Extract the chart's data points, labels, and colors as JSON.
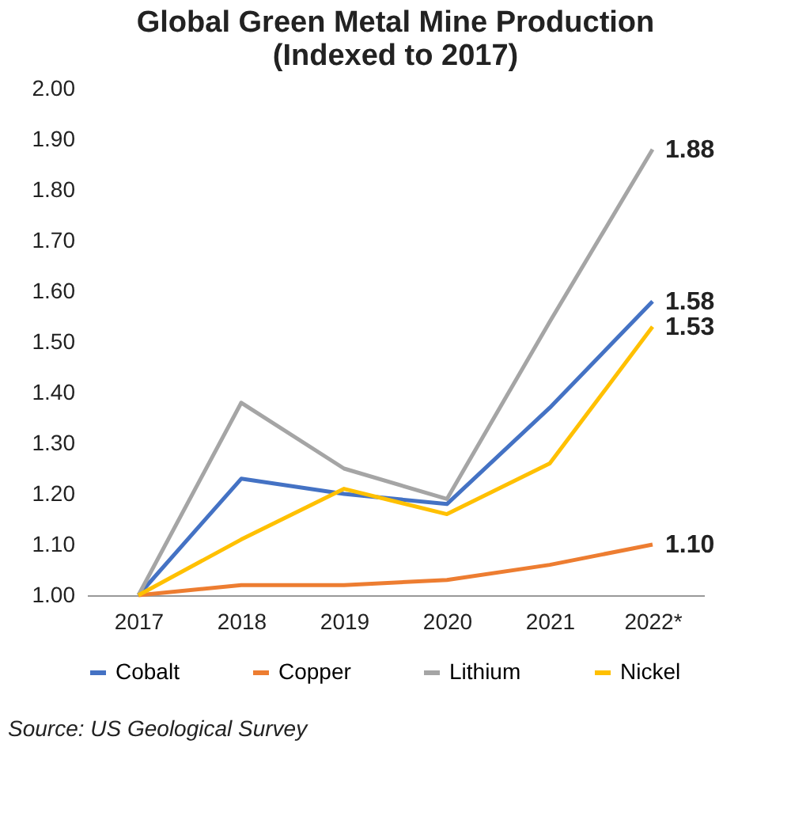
{
  "chart_data": {
    "type": "line",
    "title": "Global Green Metal Mine Production\n(Indexed to 2017)",
    "categories": [
      "2017",
      "2018",
      "2019",
      "2020",
      "2021",
      "2022*"
    ],
    "series": [
      {
        "name": "Cobalt",
        "color": "#4472c4",
        "values": [
          1.0,
          1.23,
          1.2,
          1.18,
          1.37,
          1.58
        ],
        "value_labels": [
          null,
          null,
          null,
          null,
          null,
          "1.58"
        ]
      },
      {
        "name": "Copper",
        "color": "#ed7d31",
        "values": [
          1.0,
          1.02,
          1.02,
          1.03,
          1.06,
          1.1
        ],
        "value_labels": [
          null,
          null,
          null,
          null,
          null,
          "1.10"
        ]
      },
      {
        "name": "Lithium",
        "color": "#a5a5a5",
        "values": [
          1.0,
          1.38,
          1.25,
          1.19,
          1.54,
          1.88
        ],
        "value_labels": [
          null,
          null,
          null,
          null,
          null,
          "1.88"
        ]
      },
      {
        "name": "Nickel",
        "color": "#ffc000",
        "values": [
          1.0,
          1.11,
          1.21,
          1.16,
          1.26,
          1.53
        ],
        "value_labels": [
          null,
          null,
          null,
          null,
          null,
          "1.53"
        ]
      }
    ],
    "ylim": [
      1.0,
      2.0
    ],
    "yticks": [
      {
        "value": 1.0,
        "label": "1.00"
      },
      {
        "value": 1.1,
        "label": "1.10"
      },
      {
        "value": 1.2,
        "label": "1.20"
      },
      {
        "value": 1.3,
        "label": "1.30"
      },
      {
        "value": 1.4,
        "label": "1.40"
      },
      {
        "value": 1.5,
        "label": "1.50"
      },
      {
        "value": 1.6,
        "label": "1.60"
      },
      {
        "value": 1.7,
        "label": "1.70"
      },
      {
        "value": 1.8,
        "label": "1.80"
      },
      {
        "value": 1.9,
        "label": "1.90"
      },
      {
        "value": 2.0,
        "label": "2.00"
      }
    ],
    "grid": false,
    "legend": "bottom",
    "marker": "none",
    "line_style": "solid",
    "annotations": [
      "Source: US Geological Survey"
    ]
  }
}
